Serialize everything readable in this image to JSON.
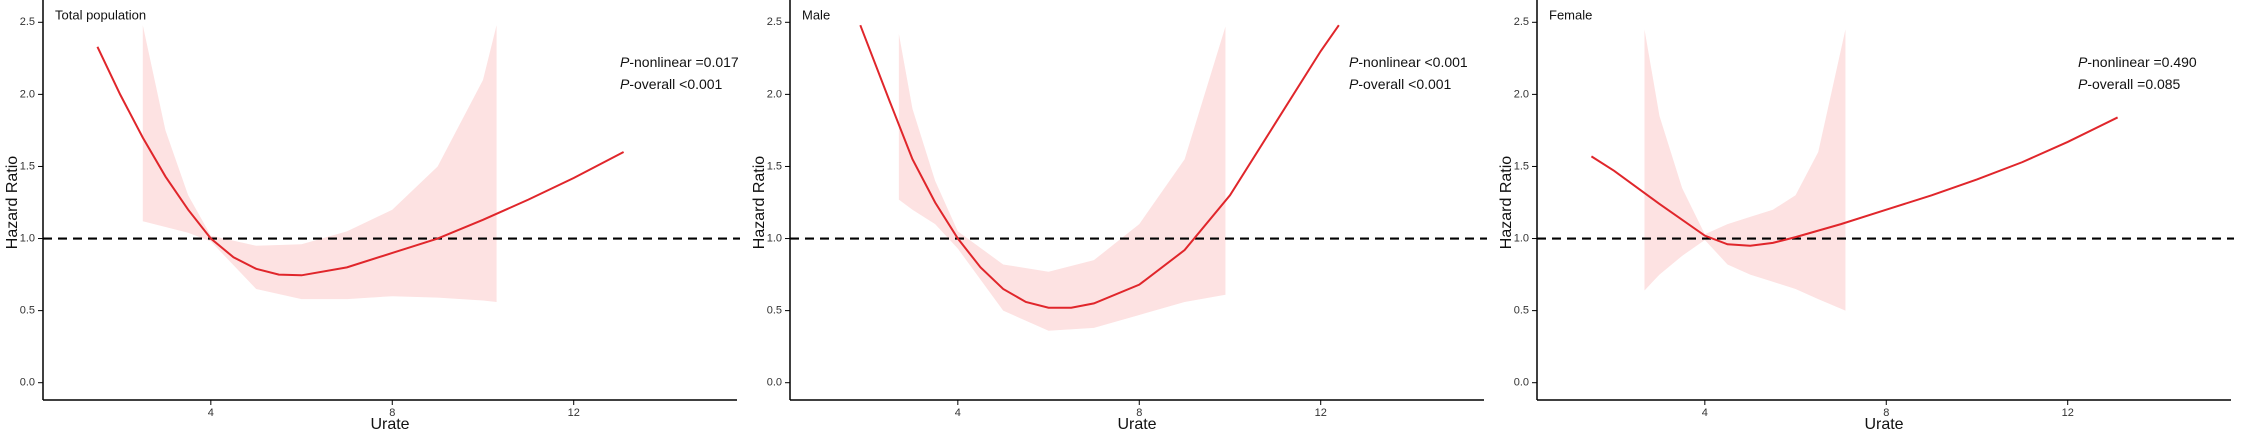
{
  "chart_data": [
    {
      "type": "line",
      "title": "Total population",
      "x_label": "Urate",
      "y_label": "Hazard Ratio",
      "annotations": [
        "P-nonlinear =0.017",
        "P-overall <0.001"
      ],
      "xlim": [
        0.3,
        15.6
      ],
      "xticks": [
        4,
        8,
        12
      ],
      "ylim": [
        -0.12,
        2.62
      ],
      "yticks": [
        {
          "value": 0,
          "label": "0.0"
        },
        0.5,
        {
          "value": 1,
          "label": "1.0"
        },
        1.5,
        {
          "value": 2,
          "label": "2.0"
        },
        2.5
      ],
      "reference_line": 1,
      "color": "#e0262b",
      "band_color": "#fde2e2",
      "x": [
        1.5,
        2,
        2.5,
        3,
        3.5,
        4,
        4.5,
        5,
        5.5,
        6,
        7,
        8,
        9,
        10,
        11,
        12,
        13.1
      ],
      "values": [
        2.33,
        2.0,
        1.7,
        1.43,
        1.2,
        1.0,
        0.87,
        0.79,
        0.75,
        0.745,
        0.8,
        0.9,
        1.0,
        1.13,
        1.27,
        1.42,
        1.6
      ],
      "ci": {
        "x": [
          2.5,
          3,
          3.5,
          4,
          5,
          6,
          7,
          8,
          9,
          10,
          10.3
        ],
        "upper": [
          2.48,
          1.75,
          1.3,
          1.02,
          0.95,
          0.96,
          1.05,
          1.2,
          1.5,
          2.1,
          2.48
        ],
        "lower": [
          1.12,
          1.08,
          1.04,
          0.98,
          0.65,
          0.58,
          0.58,
          0.6,
          0.59,
          0.57,
          0.56
        ]
      }
    },
    {
      "type": "line",
      "title": "Male",
      "x_label": "Urate",
      "y_label": "Hazard Ratio",
      "annotations": [
        "P-nonlinear <0.001",
        "P-overall <0.001"
      ],
      "xlim": [
        0.3,
        15.6
      ],
      "xticks": [
        4,
        8,
        12
      ],
      "ylim": [
        -0.12,
        2.62
      ],
      "yticks": [
        {
          "value": 0,
          "label": "0.0"
        },
        0.5,
        {
          "value": 1,
          "label": "1.0"
        },
        1.5,
        {
          "value": 2,
          "label": "2.0"
        },
        2.5
      ],
      "reference_line": 1,
      "color": "#e0262b",
      "band_color": "#fde2e2",
      "x": [
        1.85,
        2.5,
        3,
        3.5,
        4,
        4.5,
        5,
        5.5,
        6,
        6.5,
        7,
        8,
        9,
        10,
        11,
        12,
        12.4
      ],
      "values": [
        2.48,
        1.95,
        1.55,
        1.25,
        1.0,
        0.8,
        0.65,
        0.56,
        0.52,
        0.52,
        0.55,
        0.68,
        0.92,
        1.3,
        1.8,
        2.3,
        2.48
      ],
      "ci": {
        "x": [
          2.7,
          3,
          3.5,
          4,
          5,
          6,
          7,
          8,
          9,
          9.9
        ],
        "upper": [
          2.42,
          1.9,
          1.4,
          1.05,
          0.82,
          0.77,
          0.85,
          1.1,
          1.55,
          2.47
        ],
        "lower": [
          1.27,
          1.2,
          1.1,
          0.93,
          0.5,
          0.36,
          0.38,
          0.47,
          0.56,
          0.61
        ]
      }
    },
    {
      "type": "line",
      "title": "Female",
      "x_label": "Urate",
      "y_label": "Hazard Ratio",
      "annotations": [
        "P-nonlinear =0.490",
        "P-overall =0.085"
      ],
      "xlim": [
        0.3,
        15.6
      ],
      "xticks": [
        4,
        8,
        12
      ],
      "ylim": [
        -0.12,
        2.62
      ],
      "yticks": [
        {
          "value": 0,
          "label": "0.0"
        },
        0.5,
        {
          "value": 1,
          "label": "1.0"
        },
        1.5,
        {
          "value": 2,
          "label": "2.0"
        },
        2.5
      ],
      "reference_line": 1,
      "color": "#e0262b",
      "band_color": "#fde2e2",
      "x": [
        1.5,
        2,
        3,
        4,
        4.5,
        5,
        5.5,
        6,
        7,
        8,
        9,
        10,
        11,
        12,
        13.1
      ],
      "values": [
        1.57,
        1.47,
        1.24,
        1.02,
        0.96,
        0.95,
        0.97,
        1.01,
        1.1,
        1.2,
        1.3,
        1.41,
        1.53,
        1.67,
        1.84
      ],
      "ci": {
        "x": [
          2.67,
          3,
          3.5,
          4,
          4.5,
          5,
          5.5,
          6,
          6.5,
          7.1
        ],
        "upper": [
          2.45,
          1.85,
          1.35,
          1.03,
          1.1,
          1.15,
          1.2,
          1.3,
          1.6,
          2.45
        ],
        "lower": [
          0.64,
          0.75,
          0.88,
          0.99,
          0.82,
          0.75,
          0.7,
          0.65,
          0.58,
          0.5
        ]
      }
    }
  ]
}
